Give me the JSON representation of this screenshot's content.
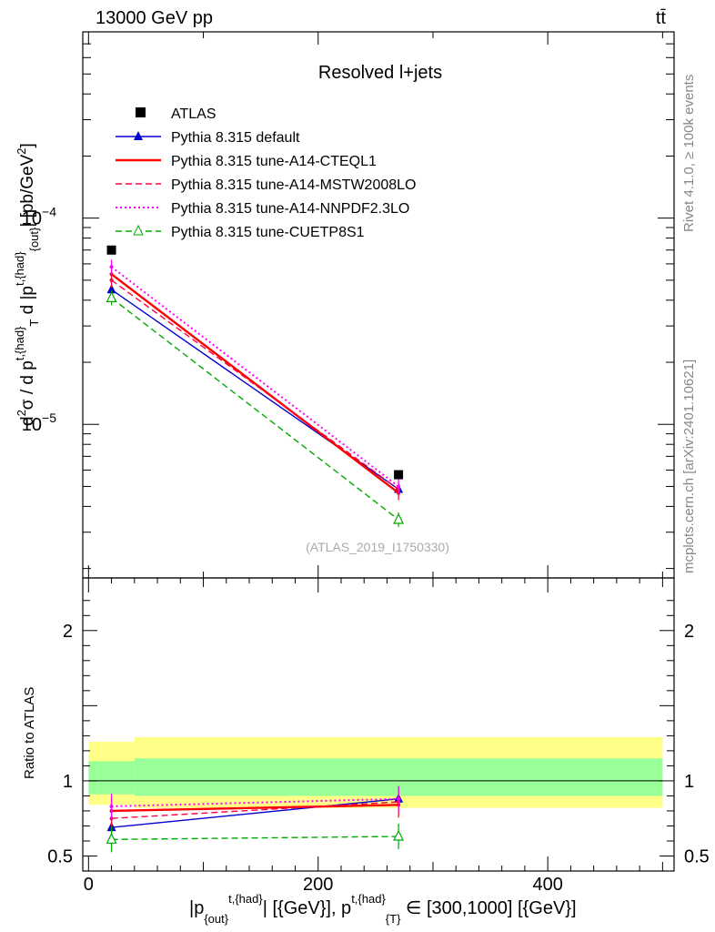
{
  "header": {
    "energy_label": "13000 GeV pp",
    "process_label": "tt̄"
  },
  "side_labels": {
    "rivet": "Rivet 4.1.0, ≥ 100k events",
    "source": "mcplots.cern.ch [arXiv:2401.10621]"
  },
  "chart_data": [
    {
      "type": "line",
      "panel": "main",
      "title": "Resolved l+jets",
      "watermark": "(ATLAS_2019_I1750330)",
      "yscale": "log",
      "ylim": [
        1.8e-06,
        0.0008
      ],
      "xlim": [
        -5,
        510
      ],
      "ylabel": "d²σ / d p_T^{t,{had}} d |p_{out}^{t,{had}}| [pb/GeV²]",
      "ytick_labels": [
        {
          "value": 1e-05,
          "base": "10",
          "exp": "−5"
        },
        {
          "value": 0.0001,
          "base": "10",
          "exp": "−4"
        }
      ],
      "x": [
        20,
        270
      ],
      "data": {
        "name": "ATLAS",
        "values": [
          7e-05,
          5.7e-06
        ]
      },
      "series": [
        {
          "name": "Pythia 8.315 default",
          "color": "#0000cc",
          "style": "solid",
          "marker": "triangle",
          "values": [
            4.5e-05,
            4.85e-06
          ]
        },
        {
          "name": "Pythia 8.315 tune-A14-CTEQL1",
          "color": "#ff0000",
          "style": "solid",
          "marker": "none",
          "values": [
            5.35e-05,
            4.65e-06
          ]
        },
        {
          "name": "Pythia 8.315 tune-A14-MSTW2008LO",
          "color": "#ff0040",
          "style": "dashed",
          "marker": "none",
          "values": [
            5e-05,
            4.85e-06
          ]
        },
        {
          "name": "Pythia 8.315 tune-A14-NNPDF2.3LO",
          "color": "#ff00ff",
          "style": "dotted",
          "marker": "none",
          "values": [
            5.8e-05,
            5e-06
          ]
        },
        {
          "name": "Pythia 8.315 tune-CUETP8S1",
          "color": "#00aa00",
          "style": "dashed",
          "marker": "open-triangle",
          "values": [
            4.1e-05,
            3.45e-06
          ]
        }
      ]
    },
    {
      "type": "line",
      "panel": "ratio",
      "ylabel": "Ratio to ATLAS",
      "yscale": "linear",
      "ylim": [
        0.4,
        2.35
      ],
      "xlim": [
        -5,
        510
      ],
      "xlabel": "|p_{out}^{t,{had}}| [{GeV}], p_T^{t,{had}} ∈ [300,1000] [{GeV}]",
      "xticks": [
        0,
        200,
        400
      ],
      "xtick_labels": [
        "0",
        "200",
        "400"
      ],
      "yticks": [
        0.5,
        1,
        2
      ],
      "ytick_labels": [
        "0.5",
        "1",
        "2"
      ],
      "x": [
        20,
        270
      ],
      "bands": {
        "yellow": {
          "color": "#ffff88",
          "edges": [
            0,
            40,
            500
          ],
          "low": [
            0.84,
            0.82
          ],
          "high": [
            1.26,
            1.29
          ]
        },
        "green": {
          "color": "#99ff99",
          "edges": [
            0,
            40,
            500
          ],
          "low": [
            0.91,
            0.9
          ],
          "high": [
            1.13,
            1.15
          ]
        }
      },
      "series": [
        {
          "name": "Pythia 8.315 default",
          "values": [
            0.69,
            0.88
          ]
        },
        {
          "name": "Pythia 8.315 tune-A14-CTEQL1",
          "values": [
            0.8,
            0.84
          ]
        },
        {
          "name": "Pythia 8.315 tune-A14-MSTW2008LO",
          "values": [
            0.75,
            0.86
          ]
        },
        {
          "name": "Pythia 8.315 tune-A14-NNPDF2.3LO",
          "values": [
            0.83,
            0.88
          ]
        },
        {
          "name": "Pythia 8.315 tune-CUETP8S1",
          "values": [
            0.61,
            0.63
          ]
        }
      ]
    }
  ]
}
